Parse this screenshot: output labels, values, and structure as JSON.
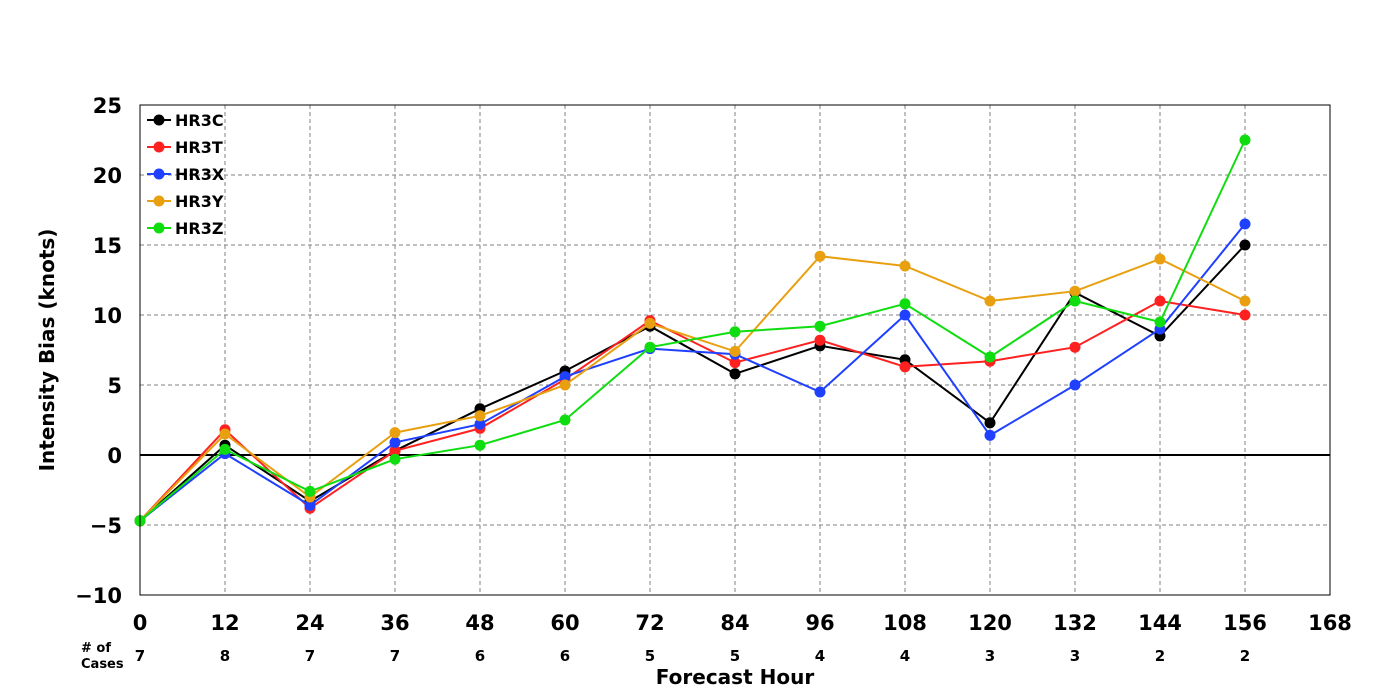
{
  "chart_data": {
    "type": "line",
    "xlabel": "Forecast Hour",
    "ylabel": "Intensity Bias (knots)",
    "xlim": [
      0,
      168
    ],
    "ylim": [
      -10,
      25
    ],
    "xticks": [
      0,
      12,
      24,
      36,
      48,
      60,
      72,
      84,
      96,
      108,
      120,
      132,
      144,
      156,
      168
    ],
    "xtick_labels": [
      "0",
      "12",
      "24",
      "36",
      "48",
      "60",
      "72",
      "84",
      "96",
      "108",
      "120",
      "132",
      "144",
      "156",
      "168"
    ],
    "yticks": [
      -10,
      -5,
      0,
      5,
      10,
      15,
      20,
      25
    ],
    "ytick_labels": [
      "−10",
      "−5",
      "0",
      "5",
      "10",
      "15",
      "20",
      "25"
    ],
    "grid": true,
    "legend_position": "top-left",
    "x": [
      0,
      12,
      24,
      36,
      48,
      60,
      72,
      84,
      96,
      108,
      120,
      132,
      144,
      156
    ],
    "series": [
      {
        "name": "HR3C",
        "color": "#000000",
        "values": [
          -4.7,
          0.7,
          -3.3,
          0.3,
          3.3,
          6.0,
          9.2,
          5.8,
          7.8,
          6.8,
          2.3,
          11.6,
          8.5,
          15.0
        ]
      },
      {
        "name": "HR3T",
        "color": "#ff2020",
        "values": [
          -4.7,
          1.8,
          -3.8,
          0.3,
          1.9,
          5.4,
          9.6,
          6.6,
          8.2,
          6.3,
          6.7,
          7.7,
          11.0,
          10.0
        ]
      },
      {
        "name": "HR3X",
        "color": "#2040ff",
        "values": [
          -4.7,
          0.1,
          -3.6,
          0.9,
          2.2,
          5.6,
          7.6,
          7.2,
          4.5,
          10.0,
          1.4,
          5.0,
          9.0,
          16.5
        ]
      },
      {
        "name": "HR3Y",
        "color": "#e8a010",
        "values": [
          -4.7,
          1.5,
          -3.0,
          1.6,
          2.8,
          5.0,
          9.4,
          7.4,
          14.2,
          13.5,
          11.0,
          11.7,
          14.0,
          11.0
        ]
      },
      {
        "name": "HR3Z",
        "color": "#10dd10",
        "values": [
          -4.7,
          0.4,
          -2.6,
          -0.3,
          0.7,
          2.5,
          7.7,
          8.8,
          9.2,
          10.8,
          7.0,
          11.0,
          9.5,
          22.5
        ]
      }
    ],
    "cases_label": "# of\nCases",
    "cases_label_lines": [
      "# of",
      "Cases"
    ],
    "cases": [
      "7",
      "8",
      "7",
      "7",
      "6",
      "6",
      "5",
      "5",
      "4",
      "4",
      "3",
      "3",
      "2",
      "2"
    ]
  }
}
